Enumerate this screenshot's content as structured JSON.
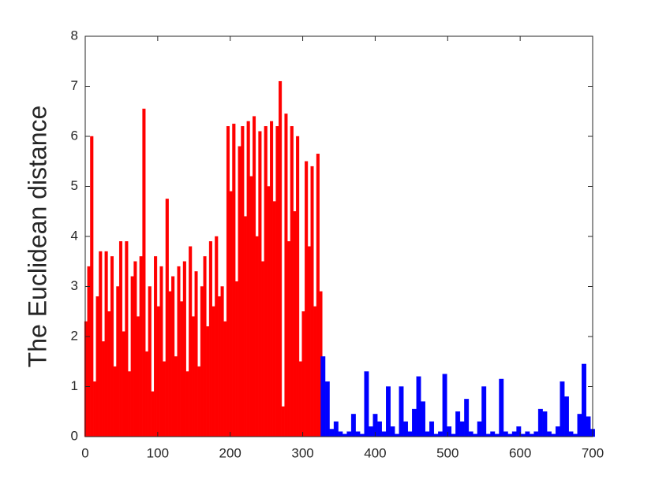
{
  "chart_data": {
    "type": "bar",
    "y_label": "The Euclidean distance",
    "xlim": [
      0,
      700
    ],
    "xticks": [
      0,
      100,
      200,
      300,
      400,
      500,
      600,
      700
    ],
    "ylim": [
      0,
      8
    ],
    "yticks": [
      0,
      1,
      2,
      3,
      4,
      5,
      6,
      7,
      8
    ],
    "grid": false,
    "series": [
      {
        "color": "#ff0000",
        "x": [
          1,
          5,
          9,
          13,
          17,
          21,
          25,
          29,
          33,
          37,
          41,
          45,
          49,
          53,
          57,
          61,
          65,
          69,
          73,
          77,
          81,
          85,
          89,
          93,
          97,
          101,
          105,
          109,
          113,
          117,
          121,
          125,
          129,
          133,
          137,
          141,
          145,
          149,
          153,
          157,
          161,
          165,
          169,
          173,
          177,
          181,
          185,
          189,
          193,
          197,
          201,
          205,
          209,
          213,
          217,
          221,
          225,
          229,
          233,
          237,
          241,
          245,
          249,
          253,
          257,
          261,
          265,
          269,
          273,
          277,
          281,
          285,
          289,
          293,
          297,
          301,
          305,
          309,
          313,
          317,
          321,
          325
        ],
        "values": [
          2.3,
          3.4,
          6.0,
          1.1,
          2.8,
          3.7,
          1.9,
          3.7,
          2.5,
          3.6,
          1.4,
          3.0,
          3.9,
          2.1,
          3.9,
          1.3,
          3.2,
          3.5,
          2.4,
          3.6,
          6.55,
          1.7,
          3.0,
          0.9,
          3.6,
          2.6,
          3.4,
          1.5,
          4.75,
          2.9,
          3.2,
          1.6,
          3.4,
          2.7,
          3.5,
          1.3,
          3.8,
          2.4,
          3.3,
          1.4,
          3.0,
          3.6,
          2.2,
          3.9,
          2.6,
          4.0,
          2.8,
          3.0,
          2.3,
          6.2,
          4.9,
          6.25,
          3.1,
          5.8,
          6.2,
          4.4,
          6.3,
          5.2,
          6.4,
          4.0,
          6.1,
          3.5,
          6.2,
          5.0,
          6.3,
          4.7,
          6.2,
          7.1,
          0.6,
          6.45,
          3.9,
          6.2,
          4.5,
          6.0,
          1.5,
          2.5,
          5.5,
          3.8,
          5.4,
          2.6,
          5.65,
          2.9
        ]
      },
      {
        "color": "#0000ff",
        "x": [
          328,
          334,
          340,
          346,
          352,
          358,
          364,
          370,
          376,
          382,
          388,
          394,
          400,
          406,
          412,
          418,
          424,
          430,
          436,
          442,
          448,
          454,
          460,
          466,
          472,
          478,
          484,
          490,
          496,
          502,
          508,
          514,
          520,
          526,
          532,
          538,
          544,
          550,
          556,
          562,
          568,
          574,
          580,
          586,
          592,
          598,
          604,
          610,
          616,
          622,
          628,
          634,
          640,
          646,
          652,
          658,
          664,
          670,
          676,
          682,
          688,
          694,
          700
        ],
        "values": [
          1.6,
          1.1,
          0.15,
          0.3,
          0.1,
          0.05,
          0.1,
          0.45,
          0.1,
          0.05,
          1.3,
          0.2,
          0.45,
          0.3,
          0.1,
          1.0,
          0.2,
          0.05,
          1.0,
          0.3,
          0.1,
          0.55,
          1.2,
          0.7,
          0.1,
          0.3,
          0.05,
          0.1,
          1.25,
          0.2,
          0.05,
          0.5,
          0.3,
          0.75,
          0.1,
          0.05,
          0.3,
          1.0,
          0.05,
          0.1,
          0.05,
          1.15,
          0.1,
          0.05,
          0.1,
          0.2,
          0.05,
          0.1,
          0.05,
          0.1,
          0.55,
          0.5,
          0.1,
          0.05,
          0.2,
          1.1,
          0.8,
          0.1,
          0.05,
          0.45,
          1.45,
          0.4,
          0.15
        ]
      }
    ]
  }
}
